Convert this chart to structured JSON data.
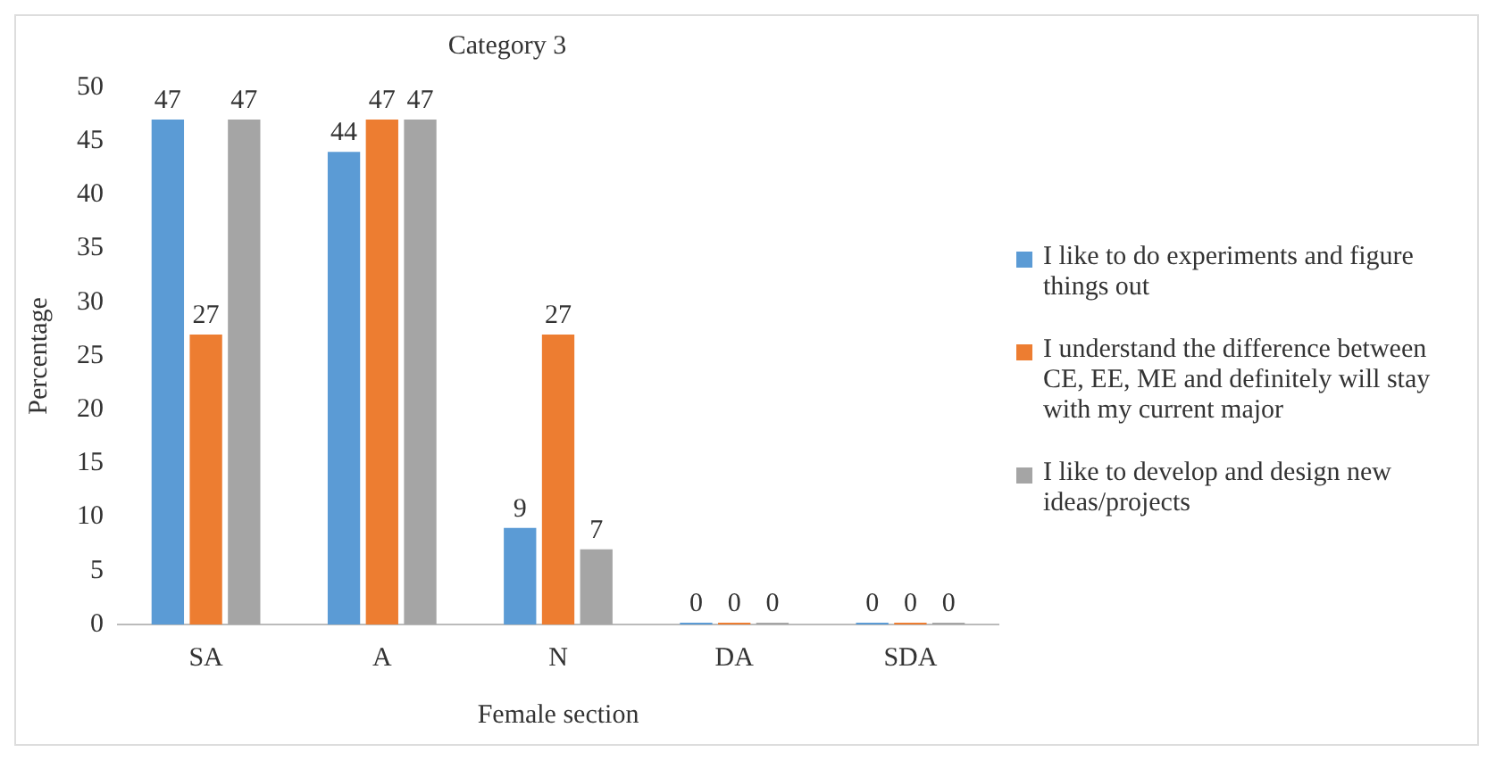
{
  "chart_data": {
    "type": "bar",
    "title": "Category 3",
    "xlabel": "Female section",
    "ylabel": "Percentage",
    "categories": [
      "SA",
      "A",
      "N",
      "DA",
      "SDA"
    ],
    "series": [
      {
        "name": "I like to do experiments and figure things out",
        "color": "#5b9bd5",
        "values": [
          47,
          44,
          9,
          0,
          0
        ]
      },
      {
        "name": "I understand the difference between CE, EE, ME and definitely will stay with my current major",
        "color": "#ed7d31",
        "values": [
          27,
          47,
          27,
          0,
          0
        ]
      },
      {
        "name": "I like to develop and design new ideas/projects",
        "color": "#a5a5a5",
        "values": [
          47,
          47,
          7,
          0,
          0
        ]
      }
    ],
    "ylim": [
      0,
      50
    ],
    "yticks": [
      0,
      5,
      10,
      15,
      20,
      25,
      30,
      35,
      40,
      45,
      50
    ],
    "grid": false,
    "legend": "right",
    "data_labels": true
  }
}
